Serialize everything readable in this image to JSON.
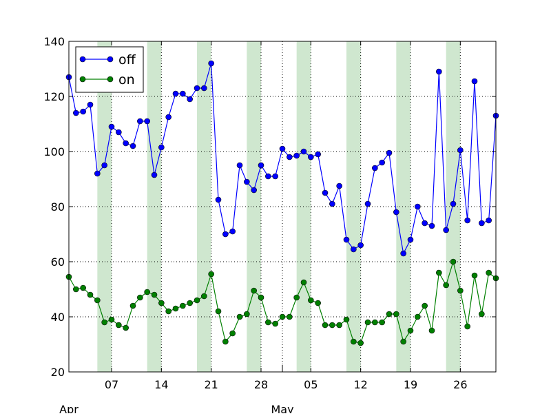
{
  "chart_data": {
    "type": "line",
    "x_type": "date",
    "x": [
      "2017-04-01",
      "2017-04-02",
      "2017-04-03",
      "2017-04-04",
      "2017-04-05",
      "2017-04-06",
      "2017-04-07",
      "2017-04-08",
      "2017-04-09",
      "2017-04-10",
      "2017-04-11",
      "2017-04-12",
      "2017-04-13",
      "2017-04-14",
      "2017-04-15",
      "2017-04-16",
      "2017-04-17",
      "2017-04-18",
      "2017-04-19",
      "2017-04-20",
      "2017-04-21",
      "2017-04-22",
      "2017-04-23",
      "2017-04-24",
      "2017-04-25",
      "2017-04-26",
      "2017-04-27",
      "2017-04-28",
      "2017-04-29",
      "2017-04-30",
      "2017-05-01",
      "2017-05-02",
      "2017-05-03",
      "2017-05-04",
      "2017-05-05",
      "2017-05-06",
      "2017-05-07",
      "2017-05-08",
      "2017-05-09",
      "2017-05-10",
      "2017-05-11",
      "2017-05-12",
      "2017-05-13",
      "2017-05-14",
      "2017-05-15",
      "2017-05-16",
      "2017-05-17",
      "2017-05-18",
      "2017-05-19",
      "2017-05-20",
      "2017-05-21",
      "2017-05-22",
      "2017-05-23",
      "2017-05-24",
      "2017-05-25",
      "2017-05-26",
      "2017-05-27",
      "2017-05-28",
      "2017-05-29",
      "2017-05-30",
      "2017-05-31"
    ],
    "series": [
      {
        "name": "off",
        "color": "#0000ff",
        "values": [
          127,
          114,
          114.5,
          117,
          92,
          95,
          109,
          107,
          103,
          102,
          111,
          111,
          91.5,
          101.5,
          112.5,
          121,
          121,
          119,
          123,
          123,
          132,
          82.5,
          70,
          71,
          95,
          89,
          86,
          95,
          91,
          91,
          101,
          98,
          98.5,
          100,
          98,
          99,
          85,
          81,
          87.5,
          68,
          64.5,
          66,
          81,
          94,
          96,
          99.5,
          78,
          63,
          68,
          80,
          74,
          73,
          129,
          71.5,
          81,
          100.5,
          75,
          125.5,
          74,
          75,
          113
        ]
      },
      {
        "name": "on",
        "color": "#008000",
        "values": [
          54.5,
          50,
          50.5,
          48,
          46,
          38,
          39,
          37,
          36,
          44,
          47,
          49,
          48,
          45,
          42,
          43,
          44,
          45,
          46,
          47.5,
          55.5,
          42,
          31,
          34,
          40,
          41,
          49.5,
          47,
          38,
          37.5,
          40,
          40,
          47,
          52.5,
          46,
          45,
          37,
          37,
          37,
          39,
          31,
          30.5,
          38,
          38,
          38,
          41,
          41,
          31,
          35,
          40,
          44,
          35,
          56,
          51.5,
          60,
          49.5,
          36.5,
          55,
          41,
          56,
          54
        ]
      }
    ],
    "ylim": [
      20,
      140
    ],
    "yticks": [
      20,
      40,
      60,
      80,
      100,
      120,
      140
    ],
    "xtick_labels": [
      {
        "date": "2017-04-07",
        "label": "07"
      },
      {
        "date": "2017-04-14",
        "label": "14"
      },
      {
        "date": "2017-04-21",
        "label": "21"
      },
      {
        "date": "2017-04-28",
        "label": "28"
      },
      {
        "date": "2017-05-05",
        "label": "05"
      },
      {
        "date": "2017-05-12",
        "label": "12"
      },
      {
        "date": "2017-05-19",
        "label": "19"
      },
      {
        "date": "2017-05-26",
        "label": "26"
      }
    ],
    "month_labels": [
      {
        "date": "2017-04-01",
        "label": "Apr"
      },
      {
        "date": "2017-05-01",
        "label": "May"
      }
    ],
    "shaded_spans": [
      [
        "2017-04-05",
        "2017-04-07"
      ],
      [
        "2017-04-12",
        "2017-04-14"
      ],
      [
        "2017-04-19",
        "2017-04-21"
      ],
      [
        "2017-04-26",
        "2017-04-28"
      ],
      [
        "2017-05-03",
        "2017-05-05"
      ],
      [
        "2017-05-10",
        "2017-05-12"
      ],
      [
        "2017-05-17",
        "2017-05-19"
      ],
      [
        "2017-05-24",
        "2017-05-26"
      ]
    ],
    "shade_color": "#cfe7cf",
    "grid": true,
    "legend_position": "top-left",
    "title": "",
    "xlabel": "",
    "ylabel": ""
  }
}
